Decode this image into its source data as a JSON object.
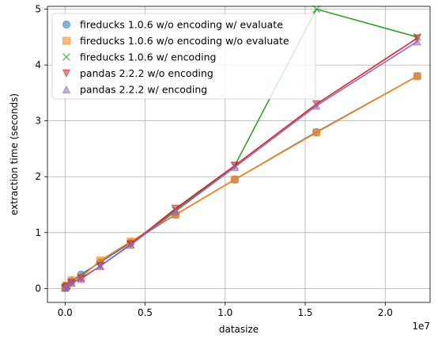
{
  "chart_data": {
    "type": "line",
    "xlabel": "datasize",
    "ylabel": "extraction time (seconds)",
    "x_offset_label": "1e7",
    "xlim": [
      -1100000,
      22800000
    ],
    "ylim": [
      -0.25,
      5.05
    ],
    "x_ticks": [
      0,
      5000000,
      10000000,
      15000000,
      20000000
    ],
    "x_tick_labels": [
      "0.0",
      "0.5",
      "1.0",
      "1.5",
      "2.0"
    ],
    "y_ticks": [
      0,
      1,
      2,
      3,
      4,
      5
    ],
    "y_tick_labels": [
      "0",
      "1",
      "2",
      "3",
      "4",
      "5"
    ],
    "grid": true,
    "legend_position": "top-left",
    "series": [
      {
        "name": "fireducks 1.0.6 w/o encoding w/ evaluate",
        "marker": "circle",
        "color": "#1f77b4",
        "x": [
          10000,
          100000,
          400000,
          1000000,
          2200000,
          4100000,
          6900000,
          10600000,
          15700000,
          22000000
        ],
        "y": [
          0.01,
          0.04,
          0.13,
          0.25,
          0.47,
          0.82,
          1.32,
          1.95,
          2.8,
          3.8
        ]
      },
      {
        "name": "fireducks 1.0.6 w/o encoding w/o evaluate",
        "marker": "square",
        "color": "#ff7f0e",
        "x": [
          10000,
          100000,
          400000,
          1000000,
          2200000,
          4100000,
          6900000,
          10600000,
          15700000,
          22000000
        ],
        "y": [
          0.02,
          0.05,
          0.15,
          0.2,
          0.5,
          0.84,
          1.32,
          1.95,
          2.79,
          3.8
        ]
      },
      {
        "name": "fireducks 1.0.6 w/ encoding",
        "marker": "x",
        "color": "#2ca02c",
        "x": [
          10000,
          100000,
          400000,
          1000000,
          2200000,
          4100000,
          6900000,
          10600000,
          15700000,
          22000000
        ],
        "y": [
          0.01,
          0.04,
          0.1,
          0.18,
          0.4,
          0.79,
          1.4,
          2.2,
          5.0,
          4.5
        ]
      },
      {
        "name": "pandas 2.2.2 w/o encoding",
        "marker": "triangle-down",
        "color": "#d62728",
        "x": [
          10000,
          100000,
          400000,
          1000000,
          2200000,
          4100000,
          6900000,
          10600000,
          15700000,
          22000000
        ],
        "y": [
          0.01,
          0.04,
          0.1,
          0.18,
          0.4,
          0.79,
          1.43,
          2.2,
          3.3,
          4.48
        ]
      },
      {
        "name": "pandas 2.2.2 w/ encoding",
        "marker": "triangle-up",
        "color": "#9467bd",
        "x": [
          10000,
          100000,
          400000,
          1000000,
          2200000,
          4100000,
          6900000,
          10600000,
          15700000,
          22000000
        ],
        "y": [
          0.01,
          0.04,
          0.1,
          0.17,
          0.4,
          0.78,
          1.38,
          2.17,
          3.27,
          4.42
        ]
      }
    ]
  }
}
